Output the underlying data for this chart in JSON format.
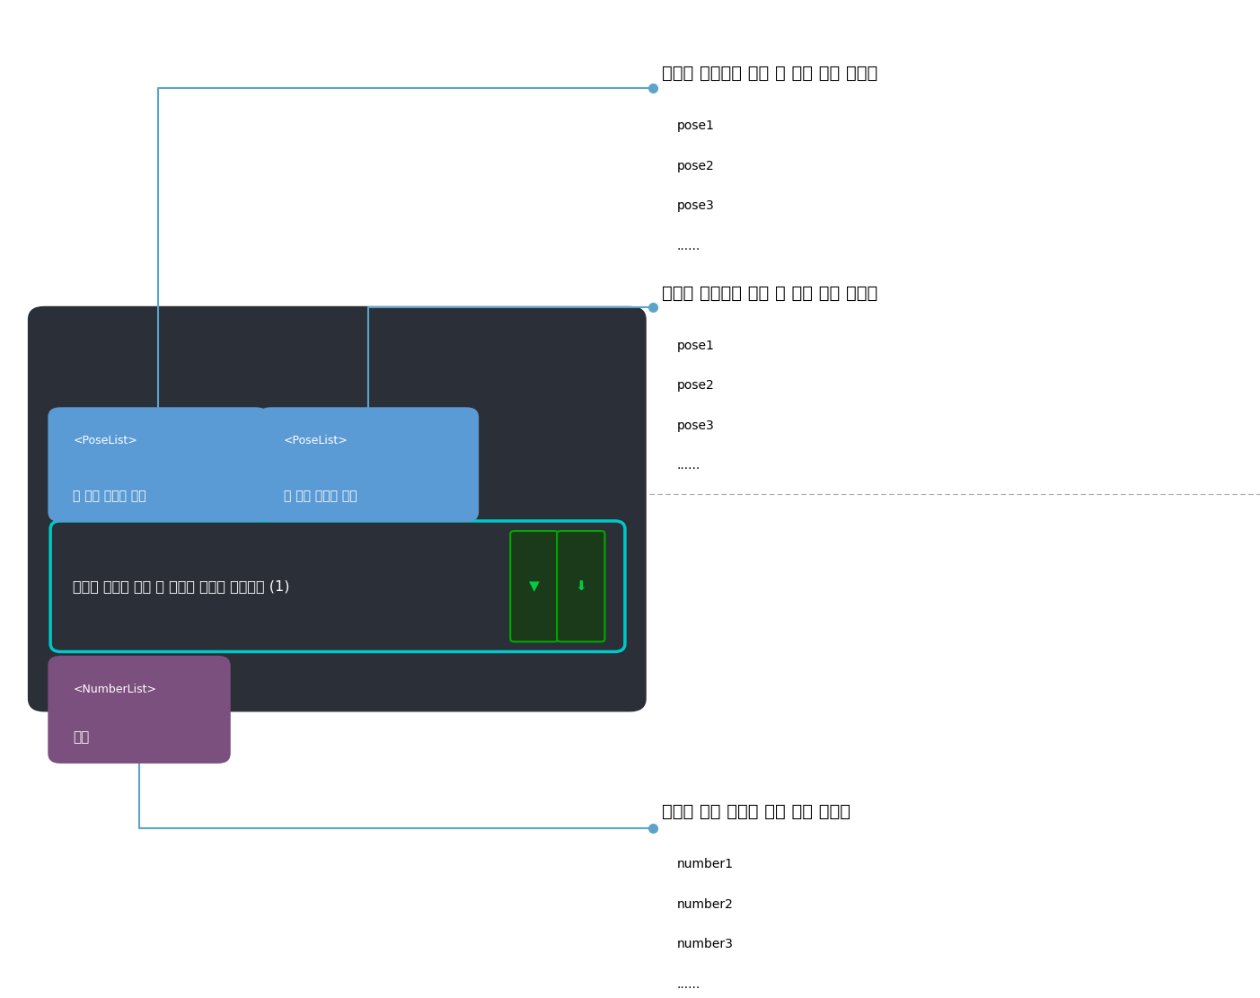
{
  "bg_color": "#1e2228",
  "node_bg": "#2a2f38",
  "input1_color": "#5b9bd5",
  "input2_color": "#5b9bd5",
  "output_color": "#7b4f7e",
  "node_border_color": "#00c8c8",
  "main_label": "지정한 방향에 따른 두 포즈의 거리를 계산하기 (1)",
  "input1_line1": "<PoseList>",
  "input1_line2": "첫 번째 세트의 포즈",
  "input2_line1": "<PoseList>",
  "input2_line2": "두 번째 세트의 포즈",
  "output_line1": "<NumberList>",
  "output_line2": "거리",
  "annotation1_title": "거리를 계산하기 위한 첫 번째 포즈 리스트",
  "annotation1_items": [
    "pose1",
    "pose2",
    "pose3",
    "......"
  ],
  "annotation2_title": "거리를 계산하기 위한 두 번째 포즈 리스트",
  "annotation2_items": [
    "pose1",
    "pose2",
    "pose3",
    "......"
  ],
  "annotation3_title": "계산을 통해 획득한 거리 수치 리스트",
  "annotation3_items": [
    "number1",
    "number2",
    "number3",
    "......"
  ],
  "line_color": "#5ba3c9",
  "divider_color": "#aaaaaa",
  "annotation_title_fontsize": 14,
  "item_fontsize": 10
}
